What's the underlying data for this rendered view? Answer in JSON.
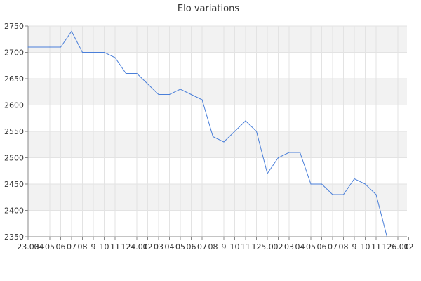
{
  "chart_data": {
    "type": "line",
    "title": "Elo variations",
    "xlabel": "",
    "ylabel": "",
    "x_tick_labels": [
      "23.03",
      "04",
      "05",
      "06",
      "07",
      "08",
      "9",
      "10",
      "11",
      "12",
      "24.01",
      "02",
      "03",
      "04",
      "05",
      "06",
      "07",
      "08",
      "9",
      "10",
      "11",
      "12",
      "25.01",
      "02",
      "03",
      "04",
      "05",
      "06",
      "07",
      "08",
      "9",
      "10",
      "11",
      "12",
      "26.01",
      "02"
    ],
    "series": [
      {
        "values": [
          2710,
          2710,
          2710,
          2710,
          2740,
          2700,
          2700,
          2700,
          2690,
          2660,
          2660,
          2640,
          2620,
          2620,
          2630,
          2620,
          2610,
          2540,
          2530,
          2550,
          2570,
          2550,
          2470,
          2500,
          2510,
          2510,
          2450,
          2450,
          2430,
          2430,
          2460,
          2450,
          2430,
          2350
        ]
      }
    ],
    "ylim": [
      2350,
      2750
    ],
    "y_ticks": [
      2350,
      2400,
      2450,
      2500,
      2550,
      2600,
      2650,
      2700,
      2750
    ],
    "grid": true,
    "line_color": "#4a7fd9",
    "band_color": "#f2f2f2",
    "grid_color": "#e3e3e3",
    "axis_color": "#888888"
  }
}
